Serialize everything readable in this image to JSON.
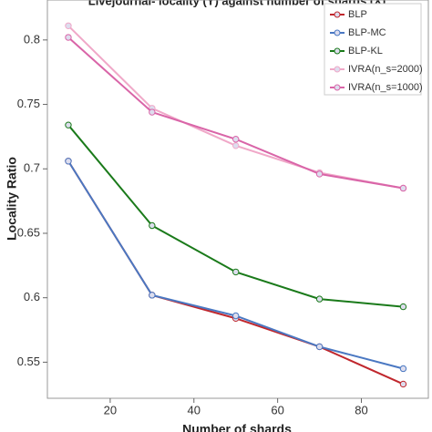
{
  "chart_data": {
    "type": "line",
    "title": "Livejournal- locality (Y) against number of shards (X)",
    "x_label": "Number of shards",
    "y_label": "Locality Ratio",
    "x": [
      10,
      30,
      50,
      70,
      90
    ],
    "series": [
      {
        "name": "BLP",
        "color": "#c0272d",
        "values": [
          0.706,
          0.602,
          0.584,
          0.562,
          0.533
        ]
      },
      {
        "name": "BLP-MC",
        "color": "#4a78c2",
        "values": [
          0.706,
          0.602,
          0.586,
          0.562,
          0.545
        ]
      },
      {
        "name": "BLP-KL",
        "color": "#1a7a1a",
        "values": [
          0.734,
          0.656,
          0.62,
          0.599,
          0.593
        ]
      },
      {
        "name": "IVRA(n_s=2000)",
        "color": "#f0a8c8",
        "values": [
          0.811,
          0.747,
          0.718,
          0.697,
          0.685
        ]
      },
      {
        "name": "IVRA(n_s=1000)",
        "color": "#d965a8",
        "values": [
          0.802,
          0.744,
          0.723,
          0.696,
          0.685
        ]
      }
    ],
    "xlim": [
      5,
      96
    ],
    "ylim": [
      0.522,
      0.831
    ],
    "xticks": [
      20,
      40,
      60,
      80
    ],
    "yticks": [
      0.55,
      0.6,
      0.65,
      0.7,
      0.75,
      0.8
    ],
    "legend": "upper right"
  }
}
